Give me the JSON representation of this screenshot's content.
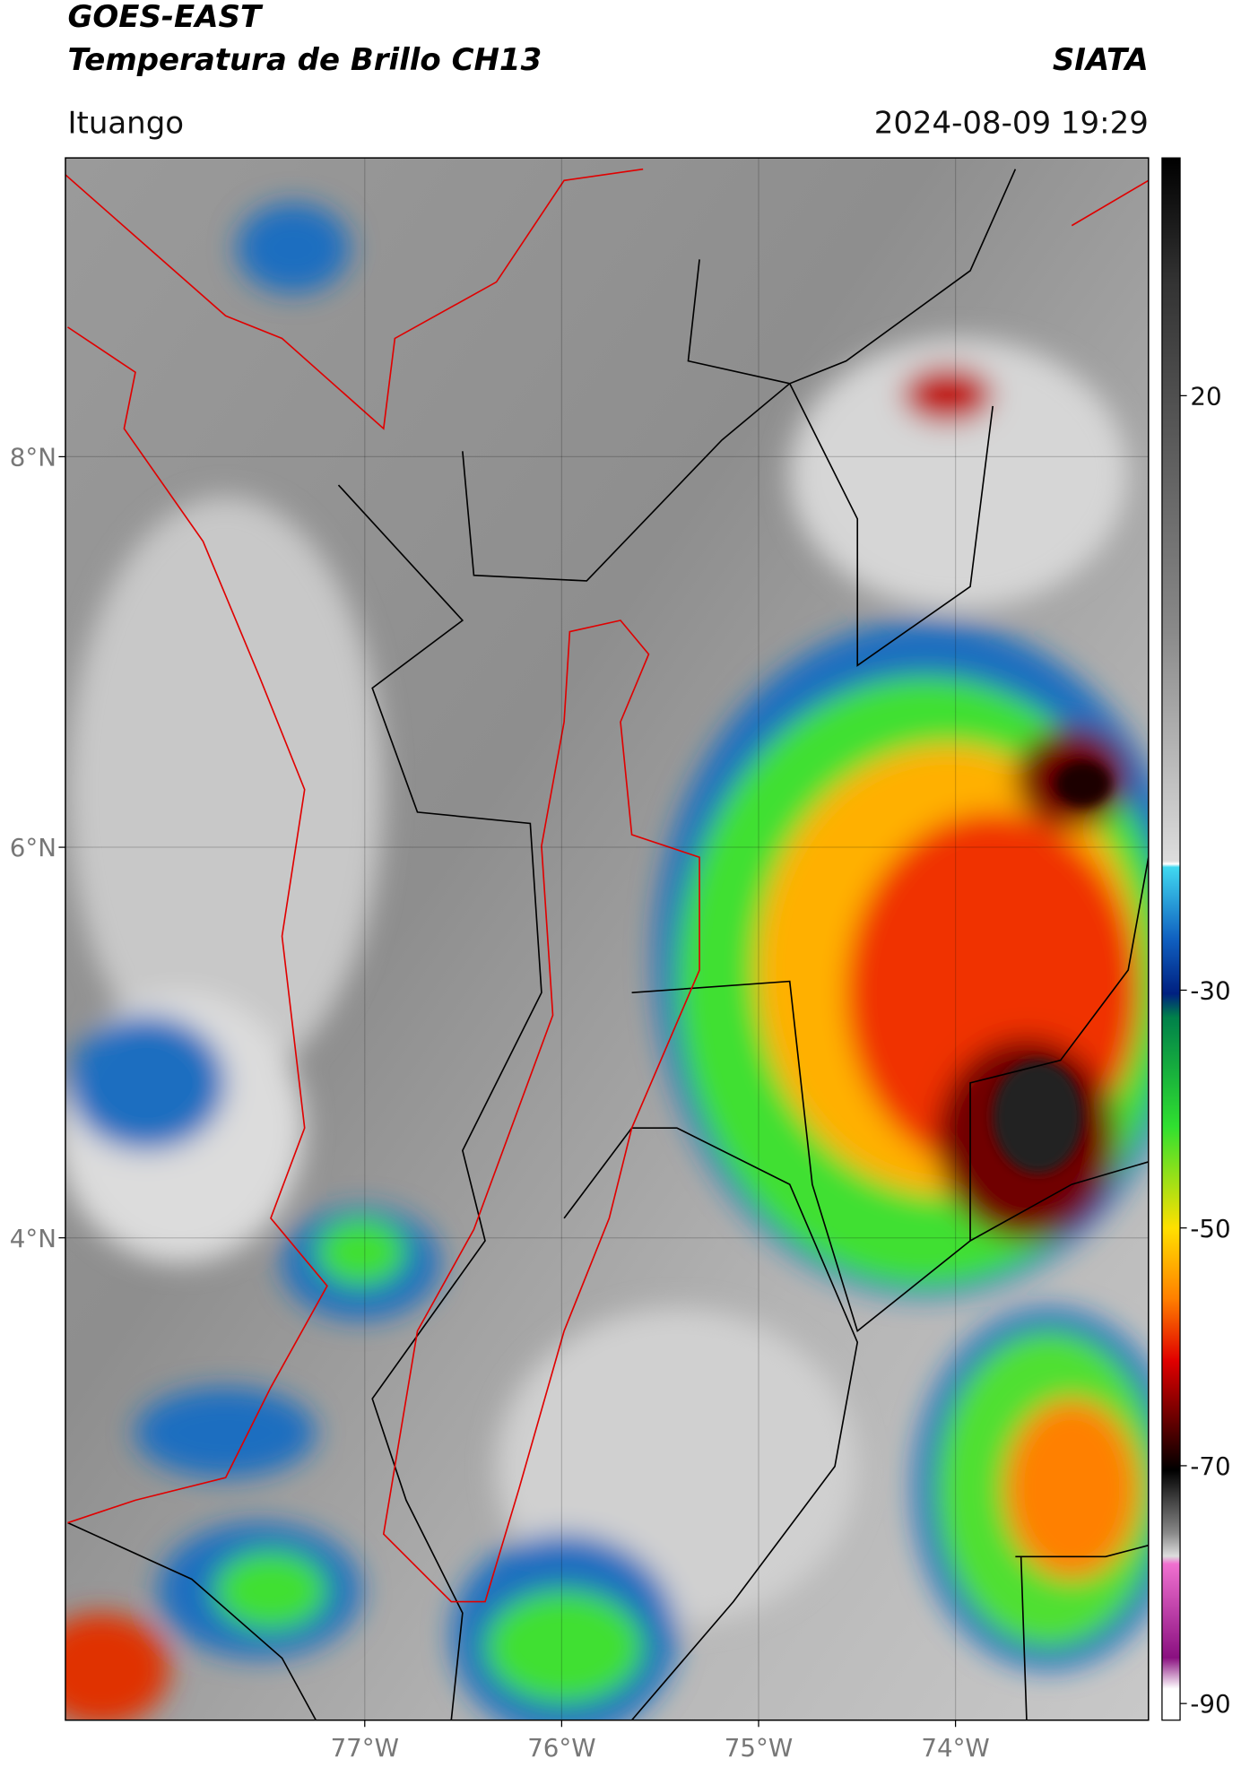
{
  "header": {
    "title": "GOES-EAST",
    "subtitle": "Temperatura de Brillo CH13",
    "org": "SIATA",
    "location": "Ituango",
    "timestamp": "2024-08-09 19:29"
  },
  "map": {
    "lat_range": [
      1.53,
      9.53
    ],
    "lon_range": [
      -78.52,
      -73.02
    ],
    "lat_ticks": [
      {
        "value": 8,
        "label": "8°N"
      },
      {
        "value": 6,
        "label": "6°N"
      },
      {
        "value": 4,
        "label": "4°N"
      }
    ],
    "lon_ticks": [
      {
        "value": -77,
        "label": "77°W"
      },
      {
        "value": -76,
        "label": "76°W"
      },
      {
        "value": -75,
        "label": "75°W"
      },
      {
        "value": -74,
        "label": "74°W"
      }
    ],
    "grid": true
  },
  "colorbar": {
    "range": [
      -91.4,
      40
    ],
    "ticks": [
      20,
      -30,
      -50,
      -70,
      -90
    ]
  }
}
